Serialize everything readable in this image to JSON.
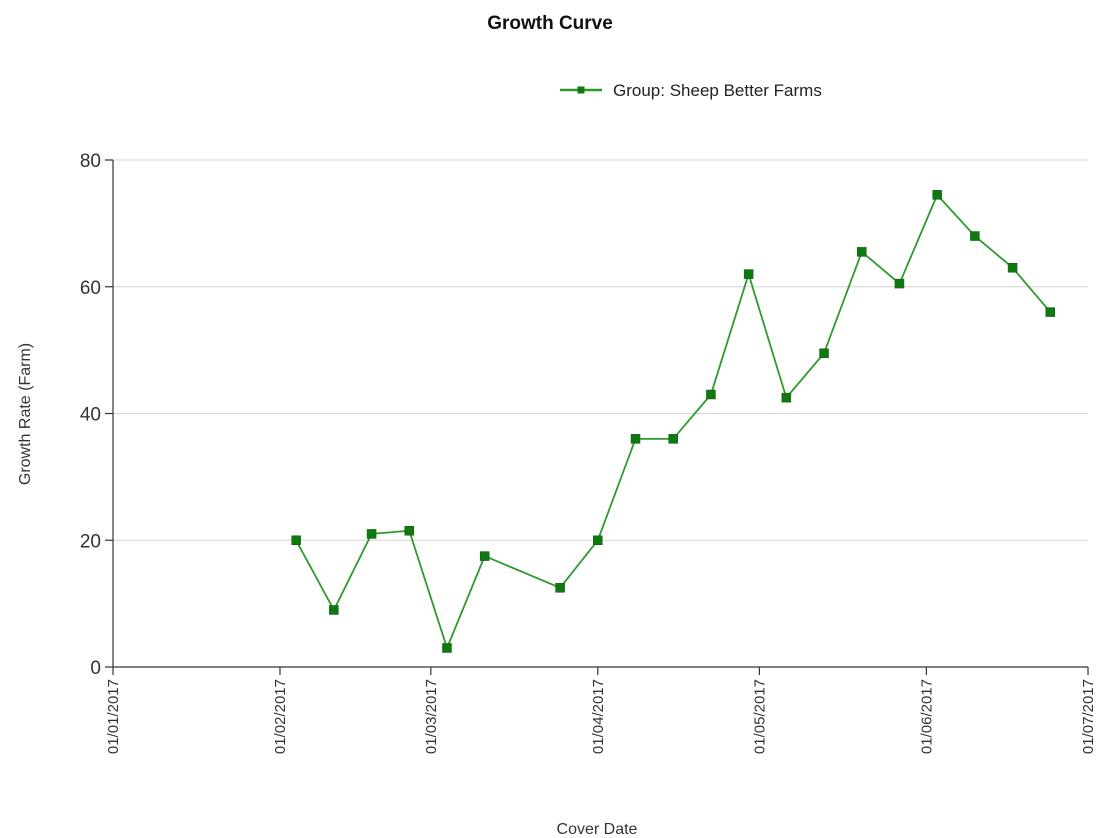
{
  "chart_data": {
    "type": "line",
    "title": "Growth Curve",
    "xlabel": "Cover Date",
    "ylabel": "Growth Rate (Farm)",
    "ylim": [
      0,
      80
    ],
    "yticks": [
      0,
      20,
      40,
      60,
      80
    ],
    "xlim": [
      "2017-01-01",
      "2017-07-01"
    ],
    "xticks": [
      {
        "date": "2017-01-01",
        "label": "01/01/2017"
      },
      {
        "date": "2017-02-01",
        "label": "01/02/2017"
      },
      {
        "date": "2017-03-01",
        "label": "01/03/2017"
      },
      {
        "date": "2017-04-01",
        "label": "01/04/2017"
      },
      {
        "date": "2017-05-01",
        "label": "01/05/2017"
      },
      {
        "date": "2017-06-01",
        "label": "01/06/2017"
      },
      {
        "date": "2017-07-01",
        "label": "01/07/2017"
      }
    ],
    "grid": "horizontal",
    "legend_position": "top-right",
    "series": [
      {
        "name": "Group: Sheep Better Farms",
        "color": "#2e9a2e",
        "marker": "square",
        "points": [
          {
            "x": "2017-02-04",
            "y": 20
          },
          {
            "x": "2017-02-11",
            "y": 9
          },
          {
            "x": "2017-02-18",
            "y": 21
          },
          {
            "x": "2017-02-25",
            "y": 21.5
          },
          {
            "x": "2017-03-04",
            "y": 3
          },
          {
            "x": "2017-03-11",
            "y": 17.5
          },
          {
            "x": "2017-03-25",
            "y": 12.5
          },
          {
            "x": "2017-04-01",
            "y": 20
          },
          {
            "x": "2017-04-08",
            "y": 36
          },
          {
            "x": "2017-04-15",
            "y": 36
          },
          {
            "x": "2017-04-22",
            "y": 43
          },
          {
            "x": "2017-04-29",
            "y": 62
          },
          {
            "x": "2017-05-06",
            "y": 42.5
          },
          {
            "x": "2017-05-13",
            "y": 49.5
          },
          {
            "x": "2017-05-20",
            "y": 65.5
          },
          {
            "x": "2017-05-27",
            "y": 60.5
          },
          {
            "x": "2017-06-03",
            "y": 74.5
          },
          {
            "x": "2017-06-10",
            "y": 68
          },
          {
            "x": "2017-06-17",
            "y": 63
          },
          {
            "x": "2017-06-24",
            "y": 56
          }
        ]
      }
    ]
  }
}
